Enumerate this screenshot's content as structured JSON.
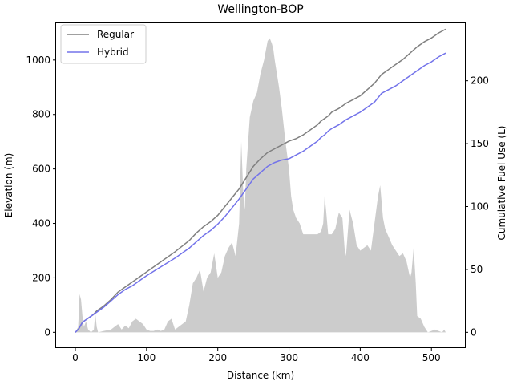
{
  "chart_data": {
    "type": "line",
    "title": "Wellington-BOP",
    "xlabel": "Distance (km)",
    "ylabel_left": "Elevation (m)",
    "ylabel_right": "Cumulative Fuel Use (L)",
    "xlim": [
      -27,
      547
    ],
    "ylim_left": [
      -55,
      1135
    ],
    "ylim_right": [
      -11.9,
      245.7
    ],
    "x_ticks": [
      0,
      100,
      200,
      300,
      400,
      500
    ],
    "y_left_ticks": [
      0,
      200,
      400,
      600,
      800,
      1000
    ],
    "y_right_ticks": [
      0,
      50,
      100,
      150,
      200
    ],
    "legend_position": "upper-left",
    "elevation": {
      "name": "",
      "color": "#cccccc",
      "x": [
        0,
        4,
        6,
        8,
        10,
        12,
        15,
        18,
        22,
        26,
        28,
        30,
        32,
        40,
        50,
        55,
        60,
        65,
        70,
        75,
        80,
        85,
        90,
        95,
        100,
        105,
        110,
        115,
        120,
        125,
        130,
        135,
        140,
        145,
        150,
        155,
        160,
        165,
        170,
        175,
        180,
        185,
        190,
        195,
        200,
        205,
        210,
        215,
        220,
        225,
        230,
        233,
        236,
        238,
        240,
        245,
        250,
        255,
        260,
        265,
        270,
        273,
        276,
        278,
        280,
        283,
        286,
        290,
        295,
        300,
        303,
        306,
        310,
        315,
        320,
        330,
        340,
        345,
        348,
        350,
        352,
        355,
        360,
        365,
        370,
        375,
        378,
        380,
        385,
        390,
        395,
        400,
        405,
        410,
        415,
        420,
        425,
        428,
        430,
        432,
        435,
        440,
        445,
        450,
        455,
        460,
        465,
        470,
        472,
        475,
        478,
        480,
        485,
        490,
        495,
        500,
        505,
        510,
        515,
        518,
        520
      ],
      "values": [
        0,
        20,
        140,
        120,
        60,
        20,
        40,
        10,
        0,
        10,
        70,
        20,
        0,
        5,
        10,
        20,
        30,
        10,
        25,
        15,
        40,
        50,
        40,
        30,
        10,
        5,
        5,
        10,
        5,
        10,
        40,
        50,
        10,
        20,
        30,
        40,
        100,
        180,
        200,
        230,
        150,
        200,
        220,
        290,
        200,
        220,
        280,
        310,
        330,
        280,
        400,
        700,
        500,
        450,
        600,
        790,
        850,
        880,
        950,
        1000,
        1070,
        1080,
        1060,
        1040,
        1000,
        950,
        900,
        820,
        700,
        600,
        500,
        450,
        420,
        400,
        360,
        360,
        360,
        370,
        400,
        500,
        450,
        360,
        360,
        380,
        440,
        420,
        310,
        280,
        450,
        400,
        320,
        300,
        310,
        320,
        300,
        400,
        500,
        540,
        480,
        420,
        380,
        350,
        320,
        300,
        280,
        290,
        260,
        200,
        220,
        310,
        180,
        60,
        50,
        20,
        0,
        5,
        10,
        5,
        0,
        10,
        0
      ]
    },
    "series": [
      {
        "name": "Regular",
        "color": "#808080",
        "x": [
          0,
          5,
          8,
          10,
          15,
          20,
          25,
          30,
          40,
          50,
          60,
          70,
          80,
          90,
          100,
          120,
          140,
          160,
          170,
          180,
          190,
          200,
          210,
          220,
          230,
          240,
          250,
          260,
          270,
          280,
          290,
          300,
          310,
          320,
          330,
          340,
          345,
          350,
          355,
          360,
          370,
          380,
          390,
          400,
          410,
          420,
          430,
          440,
          450,
          460,
          470,
          480,
          490,
          500,
          510,
          520
        ],
        "values": [
          0,
          3,
          6,
          8,
          10,
          12,
          14,
          17,
          21,
          26,
          32,
          36,
          40,
          44,
          48,
          56,
          64,
          73,
          79,
          84,
          88,
          93,
          100,
          107,
          114,
          123,
          132,
          138,
          143,
          146,
          149,
          152,
          154,
          157,
          161,
          165,
          168,
          170,
          172,
          175,
          178,
          182,
          185,
          188,
          193,
          198,
          205,
          209,
          213,
          217,
          222,
          227,
          231,
          234,
          238,
          241
        ]
      },
      {
        "name": "Hybrid",
        "color": "#7373ea",
        "x": [
          0,
          5,
          8,
          10,
          15,
          20,
          25,
          30,
          40,
          50,
          60,
          70,
          80,
          90,
          100,
          120,
          140,
          160,
          170,
          180,
          190,
          200,
          210,
          220,
          230,
          240,
          250,
          260,
          270,
          280,
          290,
          300,
          310,
          320,
          330,
          340,
          345,
          350,
          355,
          360,
          370,
          380,
          390,
          400,
          410,
          420,
          430,
          440,
          450,
          460,
          470,
          480,
          490,
          500,
          510,
          520
        ],
        "values": [
          0,
          3,
          6,
          8,
          10,
          12,
          14,
          16,
          20,
          25,
          30,
          34,
          37,
          41,
          45,
          52,
          59,
          67,
          72,
          77,
          81,
          86,
          92,
          99,
          106,
          114,
          122,
          127,
          132,
          135,
          137,
          138,
          141,
          144,
          148,
          152,
          155,
          157,
          160,
          162,
          165,
          169,
          172,
          175,
          179,
          183,
          190,
          193,
          196,
          200,
          204,
          208,
          212,
          215,
          219,
          222
        ]
      }
    ]
  }
}
